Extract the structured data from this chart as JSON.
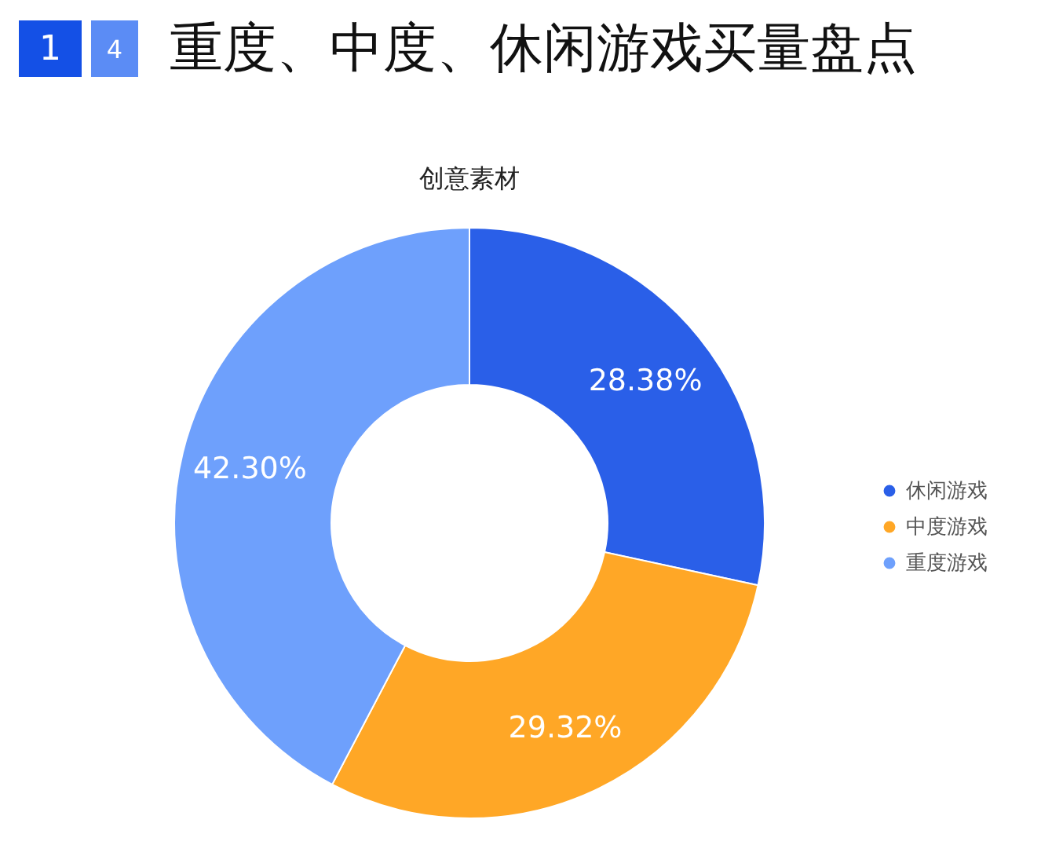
{
  "chart_data": {
    "type": "donut",
    "title": "重度、中度、休闲游戏买量盘点",
    "subtitle": "创意素材",
    "annotations": [
      "1",
      "4"
    ],
    "categories": [
      "休闲游戏",
      "中度游戏",
      "重度游戏"
    ],
    "values": [
      28.38,
      29.32,
      42.3
    ],
    "value_labels": [
      "28.38%",
      "29.32%",
      "42.30%"
    ],
    "colors": [
      "#2a5fe8",
      "#ffa726",
      "#6ea0fc"
    ],
    "legend": "right"
  }
}
